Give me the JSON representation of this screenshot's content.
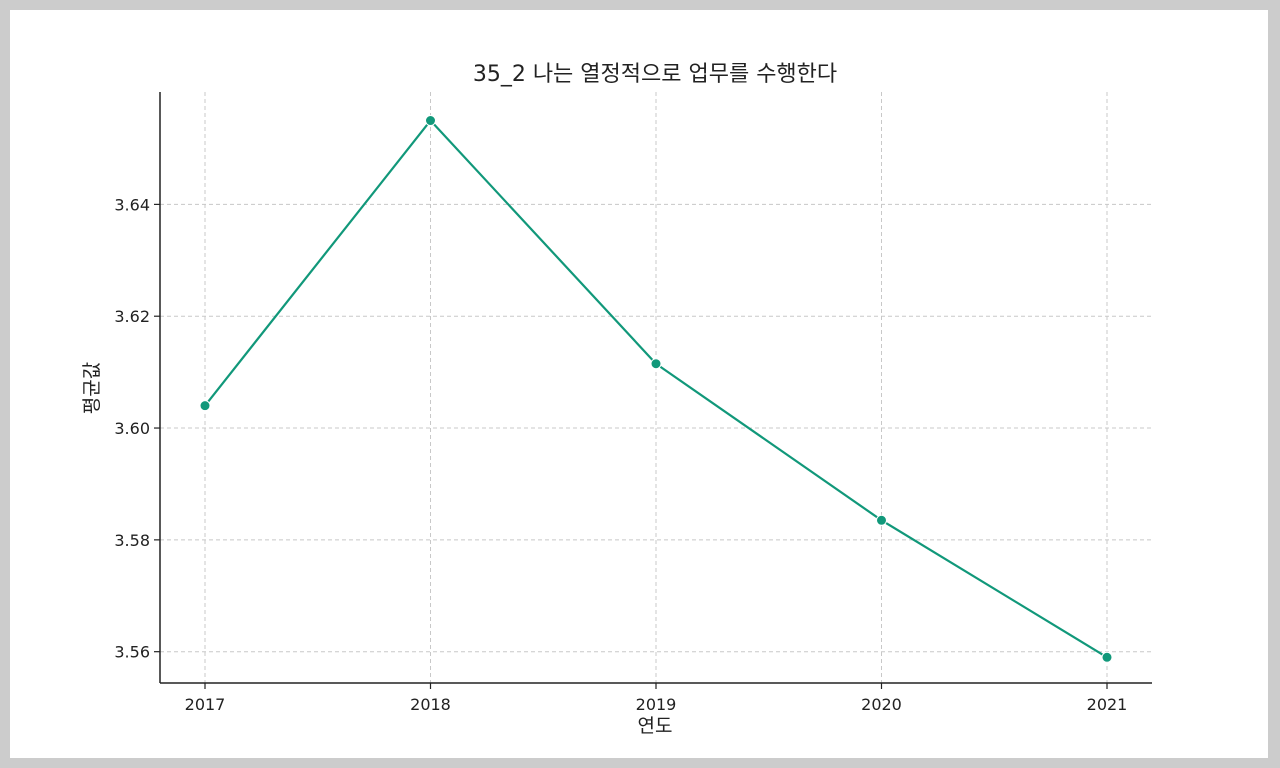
{
  "chart_data": {
    "type": "line",
    "title": "35_2 나는 열정적으로 업무를 수행한다",
    "xlabel": "연도",
    "ylabel": "평균값",
    "categories": [
      "2017",
      "2018",
      "2019",
      "2020",
      "2021"
    ],
    "series": [
      {
        "values": [
          3.604,
          3.655,
          3.6115,
          3.5835,
          3.559
        ],
        "color": "#11987a"
      }
    ],
    "yticks": [
      "3.56",
      "3.58",
      "3.60",
      "3.62",
      "3.64"
    ],
    "ylim": [
      3.5544,
      3.6601
    ],
    "grid": true
  }
}
